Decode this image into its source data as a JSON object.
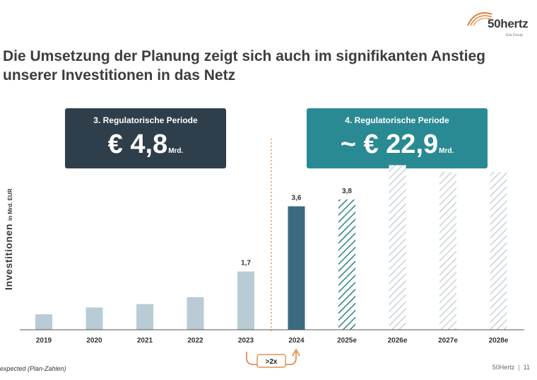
{
  "logo": {
    "text": "50hertz",
    "subtext": "Elia Group"
  },
  "title": {
    "line1": "Die Umsetzung der Planung zeigt sich auch im signifikanten Anstieg",
    "line2": "unserer Investitionen in das Netz"
  },
  "periods": [
    {
      "label": "3. Regulatorische Periode",
      "value": "€ 4,8",
      "unit": "Mrd."
    },
    {
      "label": "4. Regulatorische Periode",
      "value": "~ € 22,9",
      "unit": "Mrd."
    }
  ],
  "ylabel": {
    "main": "Investitionen",
    "sub": "in Mrd. EUR"
  },
  "multiplier_label": ">2x",
  "footnote": "expected (Plan-Zahlen)",
  "footer": {
    "brand": "50Hertz",
    "page": "11"
  },
  "colors": {
    "accent_orange": "#e07a2f",
    "period3_box": "#2e3e4b",
    "period4_box": "#2a8a93",
    "bar_past": "#b9ccd6",
    "bar_2024": "#3c6a80",
    "hatch_2025e": "#2e8088",
    "hatch_future": "#c8d3da"
  },
  "chart_data": {
    "type": "bar",
    "categories": [
      "2019",
      "2020",
      "2021",
      "2022",
      "2023",
      "2024",
      "2025e",
      "2026e",
      "2027e",
      "2028e"
    ],
    "values": [
      0.45,
      0.65,
      0.75,
      0.95,
      1.7,
      3.6,
      3.8,
      4.8,
      4.6,
      4.6
    ],
    "data_labels": [
      "",
      "",
      "",
      "",
      "1,7",
      "3,6",
      "3,8",
      "",
      "",
      ""
    ],
    "styles": [
      "past",
      "past",
      "past",
      "past",
      "past",
      "actual",
      "expected",
      "plan",
      "plan",
      "plan"
    ],
    "ylabel": "Investitionen in Mrd. EUR",
    "ylim": [
      0,
      5.2
    ],
    "grid": false,
    "legend": "none"
  }
}
